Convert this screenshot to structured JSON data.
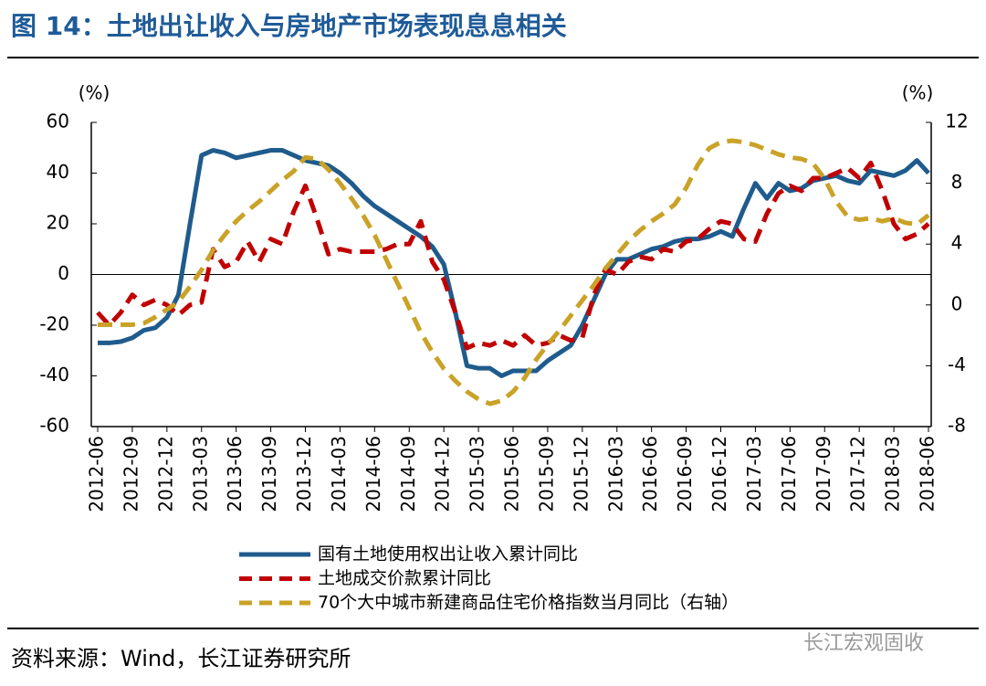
{
  "chart_data": {
    "type": "line",
    "title": "图 14：土地出让收入与房地产市场表现息息相关",
    "y_label": "(%)",
    "y2_label": "(%)",
    "source": "资料来源：Wind，长江证券研究所",
    "watermark": "长江宏观固收",
    "categories": [
      "2012-06",
      null,
      null,
      "2012-09",
      null,
      null,
      "2012-12",
      null,
      null,
      "2013-03",
      null,
      null,
      "2013-06",
      null,
      null,
      "2013-09",
      null,
      null,
      "2013-12",
      null,
      null,
      "2014-03",
      null,
      null,
      "2014-06",
      null,
      null,
      "2014-09",
      null,
      null,
      "2014-12",
      null,
      null,
      "2015-03",
      null,
      null,
      "2015-06",
      null,
      null,
      "2015-09",
      null,
      null,
      "2015-12",
      null,
      null,
      "2016-03",
      null,
      null,
      "2016-06",
      null,
      null,
      "2016-09",
      null,
      null,
      "2016-12",
      null,
      null,
      "2017-03",
      null,
      null,
      "2017-06",
      null,
      null,
      "2017-09",
      null,
      null,
      "2017-12",
      null,
      null,
      "2018-03",
      null,
      null,
      "2018-06"
    ],
    "ylim": [
      -60,
      60
    ],
    "yticks": [
      -60,
      -40,
      -20,
      0,
      20,
      40,
      60
    ],
    "y2lim": [
      -8,
      12
    ],
    "y2ticks": [
      -8,
      -4,
      0,
      4,
      8,
      12
    ],
    "series": [
      {
        "name": "国有土地使用权出让收入累计同比",
        "color": "#1f5b8c",
        "dash": false,
        "values": [
          -27,
          -27,
          -26.5,
          -25,
          -22,
          -21,
          -17,
          -8,
          20,
          47,
          49,
          48,
          46,
          47,
          48,
          49,
          49,
          47,
          45,
          44,
          43,
          40,
          36,
          31,
          27,
          24,
          21,
          18,
          15,
          11,
          4,
          -15,
          -36,
          -37,
          -37,
          -40,
          -38,
          -38,
          -38,
          -34,
          -31,
          -28,
          -20,
          -10,
          0,
          6,
          6,
          8,
          10,
          11,
          13,
          14,
          14,
          15,
          17,
          15,
          26,
          36,
          30,
          36,
          33,
          34,
          37,
          38,
          39,
          37,
          36,
          41,
          40,
          39,
          41,
          45,
          40
        ]
      },
      {
        "name": "土地成交价款累计同比",
        "color": "#c00000",
        "dash": true,
        "values": [
          -15,
          -20,
          -15,
          -8,
          -12,
          -10,
          -12,
          -16,
          -12,
          -11,
          10,
          3,
          5,
          13,
          5,
          14,
          12,
          25,
          35,
          22,
          8,
          10,
          9,
          9,
          9,
          10,
          12,
          12,
          21,
          5,
          -2,
          -15,
          -29,
          -27,
          -28,
          -26,
          -28,
          -24,
          -28,
          -27,
          -24,
          -26,
          -25,
          -8,
          2,
          0,
          5,
          7,
          6,
          10,
          9,
          13,
          14,
          18,
          21,
          20,
          14,
          13,
          24,
          32,
          35,
          33,
          38,
          38,
          40,
          42,
          38,
          44,
          33,
          20,
          14,
          16,
          20
        ]
      },
      {
        "name": "70个大中城市新建商品住宅价格指数当月同比（右轴）",
        "color": "#c9a227",
        "dash": true,
        "axis": "y2",
        "values": [
          -1.3,
          -1.3,
          -1.3,
          -1.3,
          -1.2,
          -0.8,
          -0.3,
          0.2,
          1.2,
          2.3,
          3.6,
          4.6,
          5.5,
          6.2,
          6.8,
          7.5,
          8.2,
          8.8,
          9.7,
          9.6,
          8.9,
          8.0,
          7.0,
          5.9,
          4.6,
          3.0,
          1.4,
          -0.2,
          -1.8,
          -3.1,
          -4.2,
          -5.0,
          -5.7,
          -6.2,
          -6.5,
          -6.3,
          -5.7,
          -4.8,
          -3.6,
          -2.6,
          -1.7,
          -0.7,
          0.3,
          1.3,
          2.4,
          3.3,
          4.2,
          4.9,
          5.5,
          6.0,
          6.6,
          7.7,
          9.2,
          10.3,
          10.7,
          10.8,
          10.7,
          10.5,
          10.2,
          9.9,
          9.7,
          9.6,
          9.3,
          8.3,
          6.8,
          5.8,
          5.6,
          5.7,
          5.5,
          5.7,
          5.4,
          5.3,
          5.9
        ]
      }
    ]
  }
}
